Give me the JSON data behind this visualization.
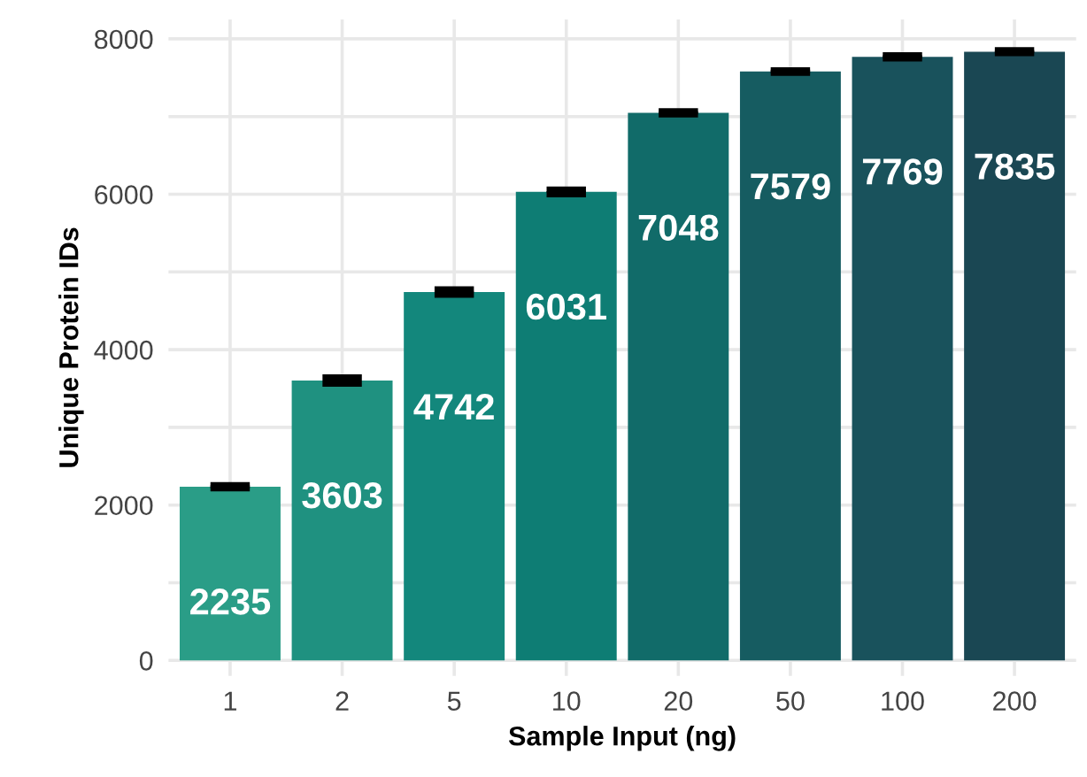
{
  "chart_data": {
    "type": "bar",
    "xlabel": "Sample Input (ng)",
    "ylabel": "Unique Protein IDs",
    "categories": [
      "1",
      "2",
      "5",
      "10",
      "20",
      "50",
      "100",
      "200"
    ],
    "values": [
      2235,
      3603,
      4742,
      6031,
      7048,
      7579,
      7769,
      7835
    ],
    "errors": [
      20,
      40,
      35,
      30,
      20,
      15,
      20,
      20
    ],
    "colors": [
      "#2a9d87",
      "#1f9180",
      "#13877c",
      "#0e7d74",
      "#116b69",
      "#165c61",
      "#19525c",
      "#1a4753"
    ],
    "data_labels": true,
    "ylim": [
      -200,
      8250
    ],
    "yticks": [
      0,
      {
        "value": 1000,
        "label": null
      },
      2000,
      {
        "value": 3000,
        "label": null
      },
      4000,
      {
        "value": 5000,
        "label": null
      },
      6000,
      {
        "value": 7000,
        "label": null
      },
      8000
    ],
    "grid": true,
    "legend": false
  }
}
